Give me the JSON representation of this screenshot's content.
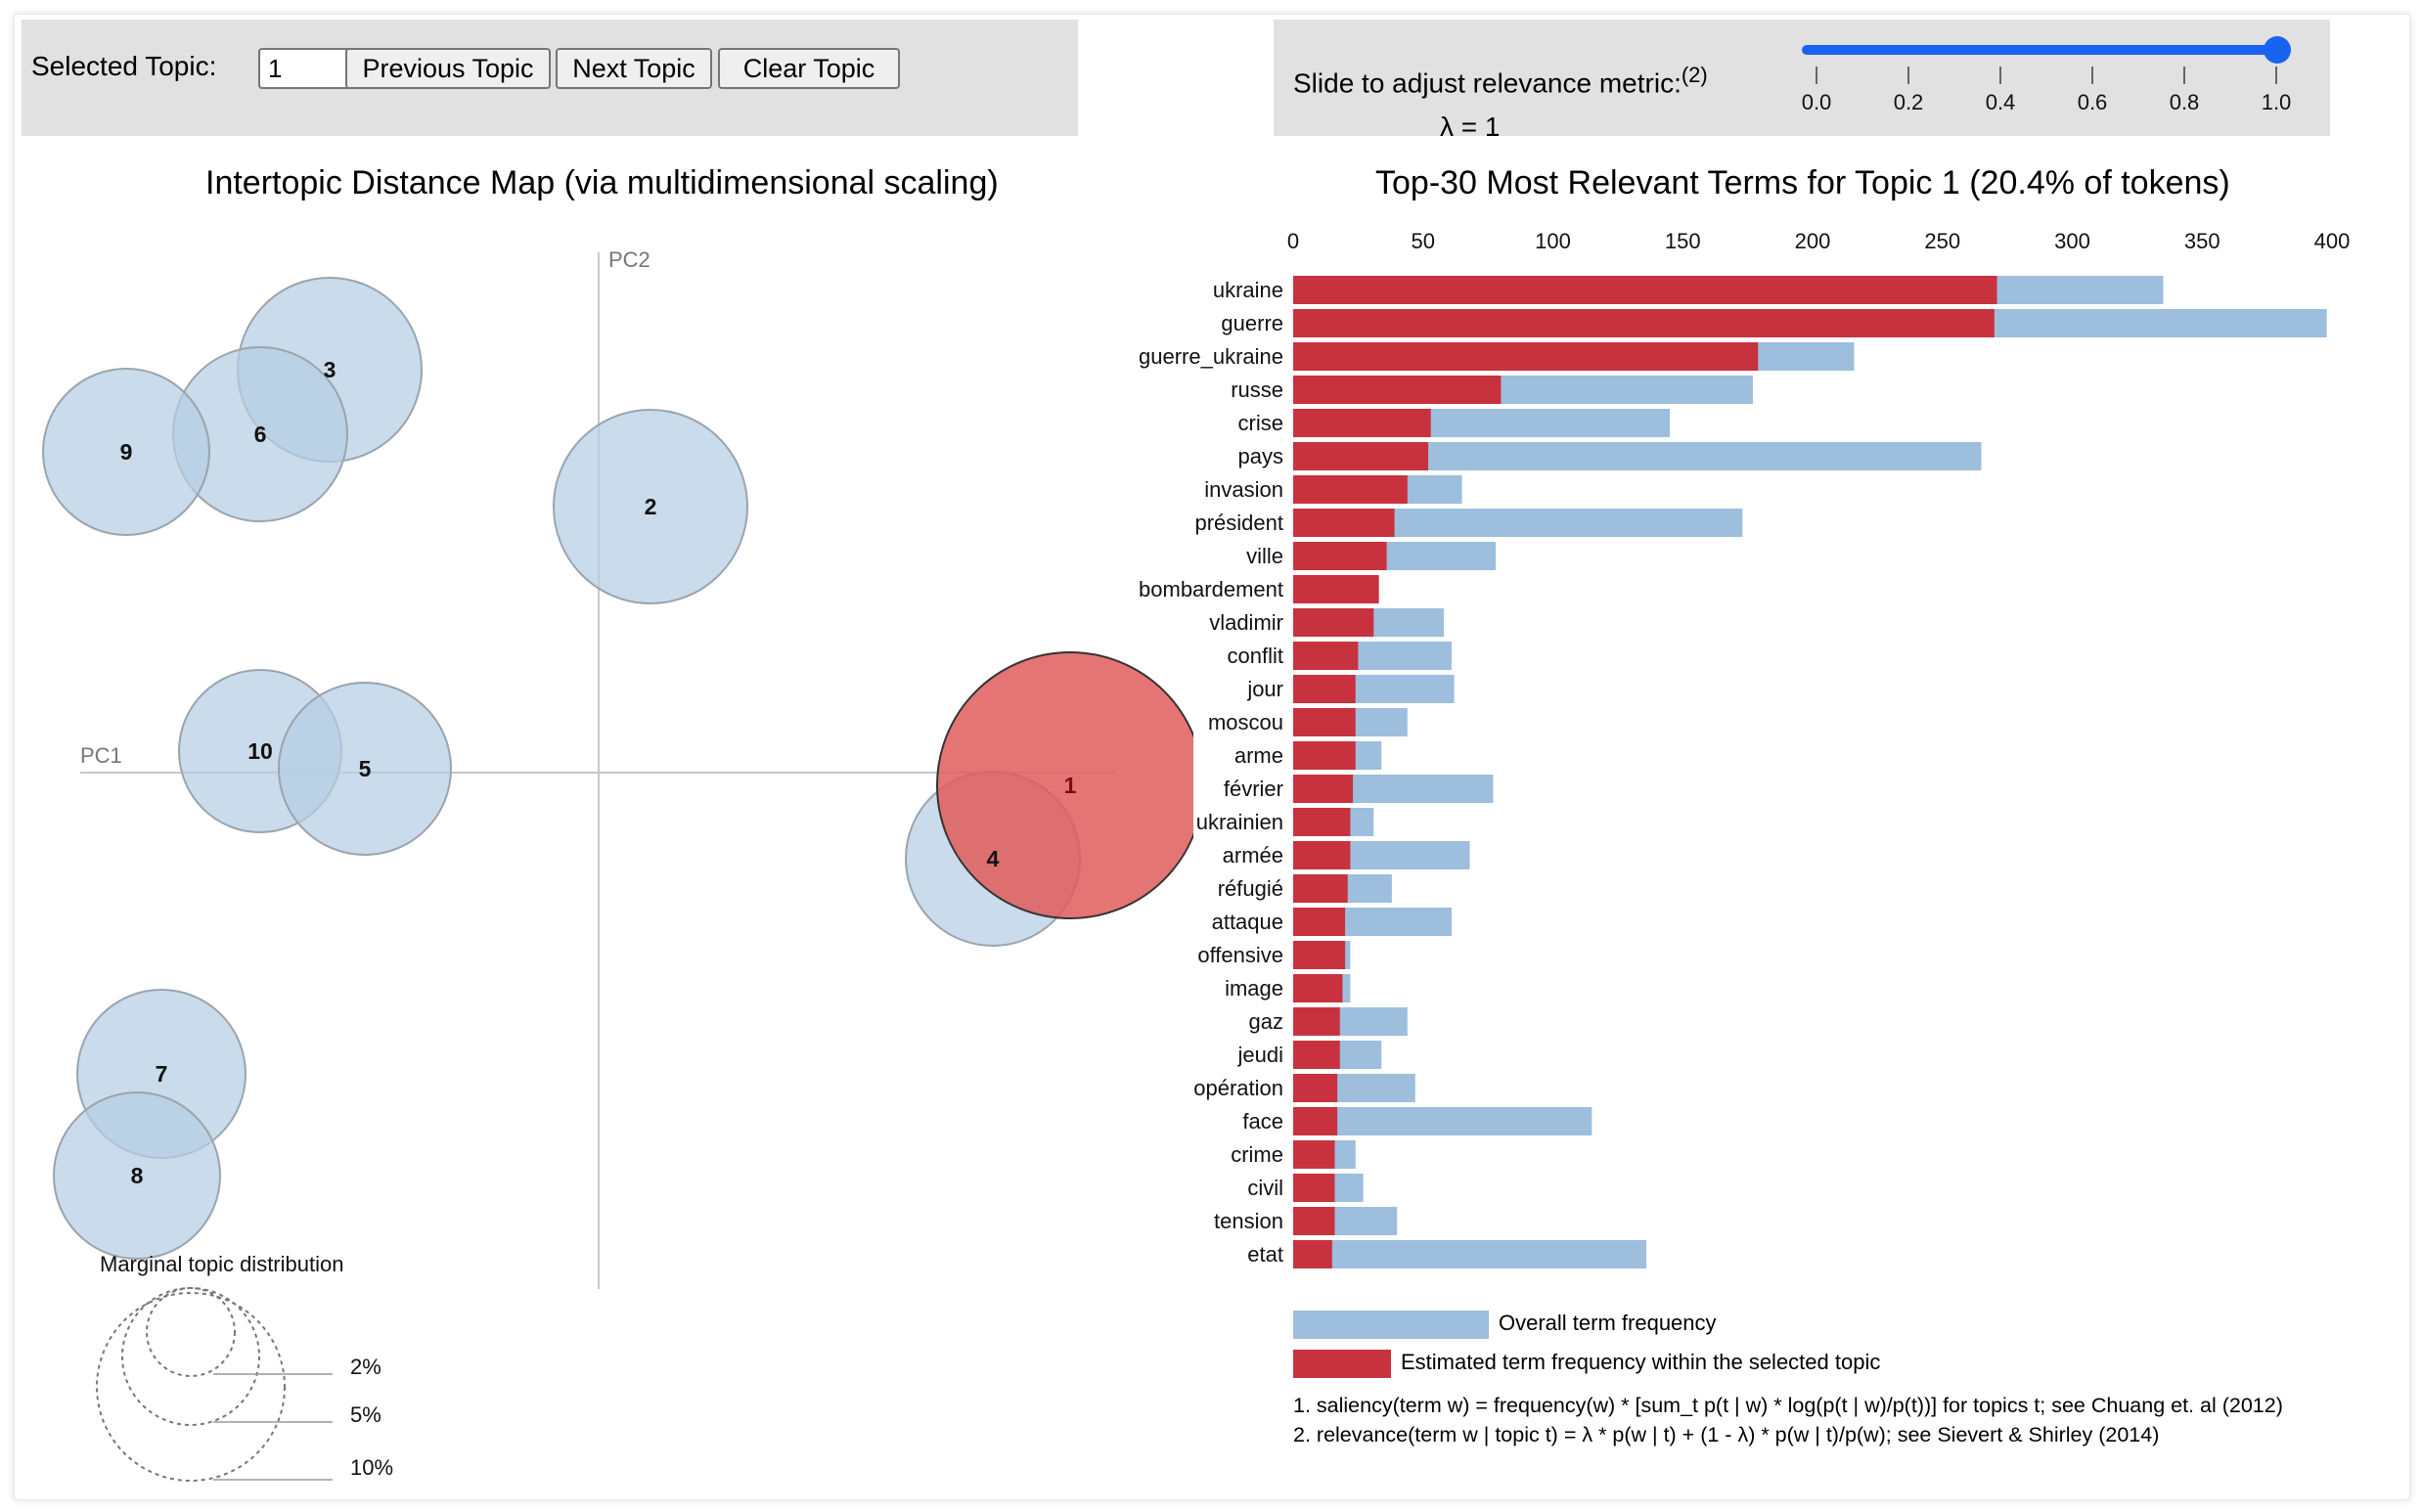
{
  "controls": {
    "selected_topic_label": "Selected Topic:",
    "selected_topic_value": "1",
    "previous_label": "Previous Topic",
    "next_label": "Next Topic",
    "clear_label": "Clear Topic"
  },
  "slider": {
    "label": "Slide to adjust relevance metric:",
    "footnote_ref": "(2)",
    "lambda_text": "λ = 1",
    "value": 1.0,
    "ticks": [
      "0.0",
      "0.2",
      "0.4",
      "0.6",
      "0.8",
      "1.0"
    ]
  },
  "left": {
    "title": "Intertopic Distance Map (via multidimensional scaling)",
    "pc1_label": "PC1",
    "pc2_label": "PC2",
    "marginal_title": "Marginal topic distribution",
    "marginal_labels": [
      "2%",
      "5%",
      "10%"
    ],
    "topics": [
      {
        "id": "1",
        "selected": true
      },
      {
        "id": "2"
      },
      {
        "id": "3"
      },
      {
        "id": "4"
      },
      {
        "id": "5"
      },
      {
        "id": "6"
      },
      {
        "id": "7"
      },
      {
        "id": "8"
      },
      {
        "id": "9"
      },
      {
        "id": "10"
      }
    ]
  },
  "right": {
    "title": "Top-30 Most Relevant Terms for Topic 1 (20.4% of tokens)",
    "legend_overall": "Overall term frequency",
    "legend_estimated": "Estimated term frequency within the selected topic",
    "note1": "1. saliency(term w) = frequency(w) * [sum_t p(t | w) * log(p(t | w)/p(t))] for topics t; see Chuang et. al (2012)",
    "note2": "2. relevance(term w | topic t) = λ * p(w | t) + (1 - λ) * p(w | t)/p(w); see Sievert & Shirley (2014)"
  },
  "colors": {
    "topic_bar": "#c8323f",
    "overall_bar": "#9dbedd",
    "selected_circle": "#e05c5c",
    "circle_fill": "#b6cde3",
    "slider_blue": "#1a62f0"
  },
  "chart_data": {
    "type": "bar",
    "orientation": "horizontal",
    "xlim": [
      0,
      400
    ],
    "ticks": [
      "0",
      "50",
      "100",
      "150",
      "200",
      "250",
      "300",
      "350",
      "400"
    ],
    "categories": [
      "ukraine",
      "guerre",
      "guerre_ukraine",
      "russe",
      "crise",
      "pays",
      "invasion",
      "président",
      "ville",
      "bombardement",
      "vladimir",
      "conflit",
      "jour",
      "moscou",
      "arme",
      "février",
      "ukrainien",
      "armée",
      "réfugié",
      "attaque",
      "offensive",
      "image",
      "gaz",
      "jeudi",
      "opération",
      "face",
      "crime",
      "civil",
      "tension",
      "etat"
    ],
    "series": [
      {
        "name": "Overall term frequency",
        "values": [
          335,
          398,
          216,
          177,
          145,
          265,
          65,
          173,
          78,
          33,
          58,
          61,
          62,
          44,
          34,
          77,
          31,
          68,
          38,
          61,
          22,
          22,
          44,
          34,
          47,
          115,
          24,
          27,
          40,
          136
        ]
      },
      {
        "name": "Estimated term frequency within the selected topic",
        "values": [
          271,
          270,
          179,
          80,
          53,
          52,
          44,
          39,
          36,
          33,
          31,
          25,
          24,
          24,
          24,
          23,
          22,
          22,
          21,
          20,
          20,
          19,
          18,
          18,
          17,
          17,
          16,
          16,
          16,
          15
        ]
      }
    ]
  }
}
